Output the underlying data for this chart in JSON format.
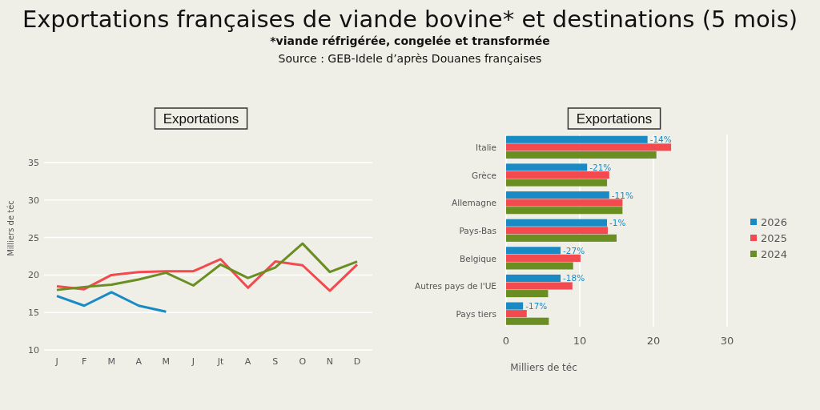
{
  "chart_data": [
    {
      "type": "other",
      "title": "Exportations françaises de viande bovine* et destinations (5 mois)",
      "subtitle": "*viande réfrigérée, congelée et transformée",
      "annotations": [
        "Source : GEB-Idele d’après Douanes françaises"
      ]
    },
    {
      "type": "line",
      "title": "Exportations",
      "ylabel": "Milliers de téc",
      "categories": [
        "J",
        "F",
        "M",
        "A",
        "M",
        "J",
        "Jt",
        "A",
        "S",
        "O",
        "N",
        "D"
      ],
      "ylim": [
        10,
        35
      ],
      "yticks": [
        10,
        15,
        20,
        25,
        30,
        35
      ],
      "grid": "y",
      "series": [
        {
          "color": "#1a8ac4",
          "values": [
            17.2,
            15.9,
            17.7,
            15.9,
            15.1,
            null,
            null,
            null,
            null,
            null,
            null,
            null
          ]
        },
        {
          "color": "#f24a4f",
          "values": [
            18.5,
            18.1,
            20.0,
            20.4,
            20.5,
            20.5,
            22.1,
            18.3,
            21.8,
            21.3,
            17.9,
            21.4
          ]
        },
        {
          "color": "#6b8e23",
          "values": [
            18.0,
            18.4,
            18.7,
            19.4,
            20.3,
            18.6,
            21.4,
            19.6,
            21.0,
            24.2,
            20.4,
            21.8
          ]
        }
      ]
    },
    {
      "type": "bar",
      "orientation": "horizontal",
      "title": "Exportations",
      "xlabel": "Milliers de téc",
      "categories": [
        "Italie",
        "Grèce",
        "Allemagne",
        "Pays-Bas",
        "Belgique",
        "Autres pays de l'UE",
        "Pays tiers"
      ],
      "xlim": [
        0,
        30
      ],
      "xticks": [
        0,
        10,
        20,
        30
      ],
      "grid": "x",
      "legend": "right",
      "annotations": [
        {
          "text": "-14%",
          "x": 19.2,
          "y": "Italie"
        },
        {
          "text": "-21%",
          "x": 11.0,
          "y": "Grèce"
        },
        {
          "text": "-11%",
          "x": 14.0,
          "y": "Allemagne"
        },
        {
          "text": "-1%",
          "x": 13.7,
          "y": "Pays-Bas"
        },
        {
          "text": "-27%",
          "x": 7.4,
          "y": "Belgique"
        },
        {
          "text": "-18%",
          "x": 7.4,
          "y": "Autres pays de l'UE"
        },
        {
          "text": "-17%",
          "x": 2.3,
          "y": "Pays tiers"
        }
      ],
      "series": [
        {
          "name": "2026",
          "color": "#1a8ac4",
          "values": [
            19.2,
            11.0,
            14.0,
            13.7,
            7.4,
            7.4,
            2.3
          ]
        },
        {
          "name": "2025",
          "color": "#f24a4f",
          "values": [
            22.4,
            14.0,
            15.8,
            13.8,
            10.1,
            9.0,
            2.8
          ]
        },
        {
          "name": "2024",
          "color": "#6b8e23",
          "values": [
            20.4,
            13.7,
            15.8,
            15.0,
            9.1,
            5.7,
            5.8
          ]
        }
      ]
    }
  ]
}
